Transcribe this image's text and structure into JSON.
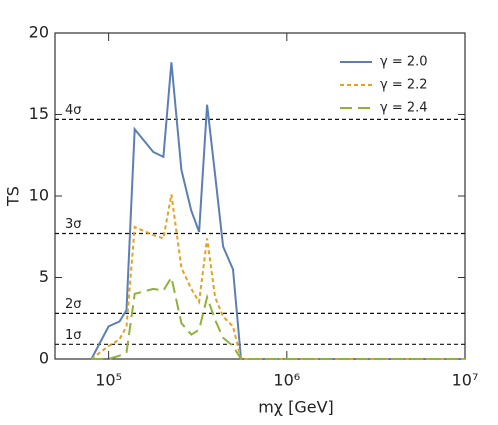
{
  "chart_data": {
    "type": "line",
    "x_log": true,
    "x_label": "mχ [GeV]",
    "y_label": "TS",
    "x": [
      80000,
      100000,
      115000,
      126000,
      140000,
      178000,
      203000,
      225000,
      256000,
      291000,
      322000,
      357000,
      396000,
      439000,
      499000,
      553000,
      10000000
    ],
    "series": [
      {
        "name": "γ = 2.0",
        "color": "#5b7fb5",
        "line_style": "solid",
        "values": [
          0,
          2.0,
          2.3,
          3.0,
          14.1,
          12.7,
          12.4,
          18.2,
          11.6,
          9.1,
          7.8,
          15.6,
          11.3,
          6.9,
          5.5,
          0,
          0
        ]
      },
      {
        "name": "γ = 2.2",
        "color": "#e8a020",
        "line_style": "dashed",
        "values": [
          0,
          0.8,
          1.2,
          2.0,
          8.1,
          7.6,
          7.4,
          10.1,
          5.6,
          4.3,
          3.5,
          7.4,
          3.8,
          2.6,
          2.0,
          0,
          0
        ]
      },
      {
        "name": "γ = 2.4",
        "color": "#8db33a",
        "line_style": "long-dashed",
        "values": [
          0,
          0,
          0.2,
          0.4,
          4.0,
          4.3,
          4.2,
          5.0,
          2.2,
          1.5,
          1.8,
          3.8,
          2.4,
          1.3,
          0.8,
          0,
          0
        ]
      }
    ],
    "reference_lines": [
      {
        "value": 14.7,
        "label": "4σ"
      },
      {
        "value": 7.7,
        "label": "3σ"
      },
      {
        "value": 2.8,
        "label": "2σ"
      },
      {
        "value": 0.9,
        "label": "1σ"
      }
    ],
    "xlim": [
      50000,
      10000000
    ],
    "xticks": [
      {
        "value": 100000,
        "label": "10⁵"
      },
      {
        "value": 1000000,
        "label": "10⁶"
      },
      {
        "value": 10000000,
        "label": "10⁷"
      }
    ],
    "ylim": [
      0,
      20
    ],
    "yticks": [
      0,
      5,
      10,
      15,
      20
    ],
    "legend": "upper right"
  }
}
